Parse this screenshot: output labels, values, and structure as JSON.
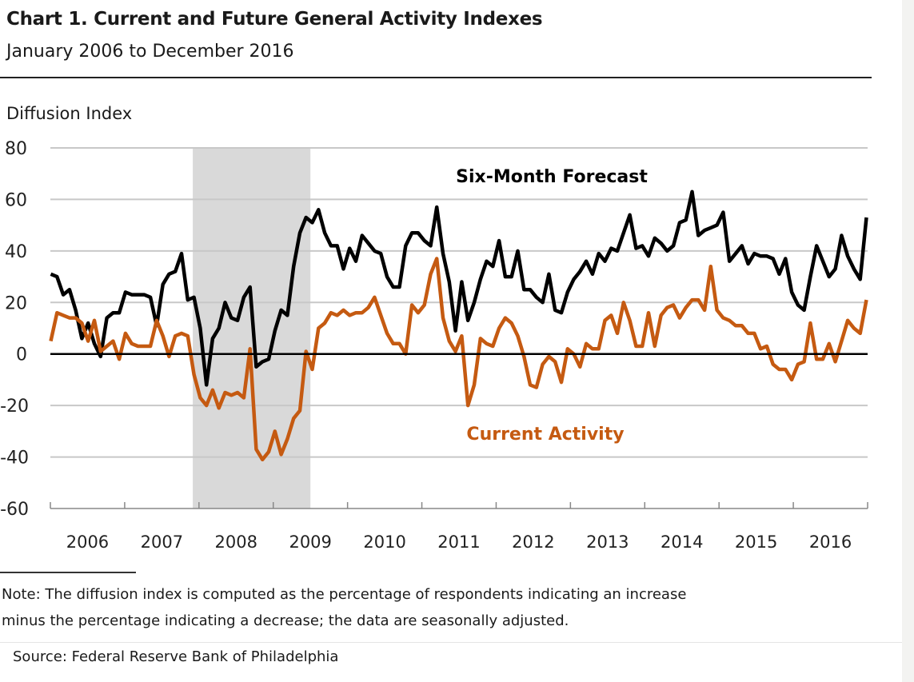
{
  "header": {
    "title": "Chart 1. Current and Future General Activity Indexes",
    "subtitle": "January 2006 to December 2016"
  },
  "footer": {
    "note_line1": "Note: The diffusion index is computed as the percentage of respondents indicating an increase",
    "note_line2": "minus the percentage indicating a decrease; the data are seasonally adjusted.",
    "source": "Source: Federal Reserve Bank of Philadelphia"
  },
  "chart_data": {
    "type": "line",
    "title": "Chart 1. Current and Future General Activity Indexes",
    "subtitle": "January 2006 to December 2016",
    "ylabel": "Diffusion Index",
    "xlabel": "",
    "x_start": "2006-01",
    "x_end": "2016-12",
    "x_frequency": "monthly",
    "ylim": [
      -60,
      80
    ],
    "yticks": [
      80,
      60,
      40,
      20,
      0,
      -20,
      -40,
      -60
    ],
    "xtick_labels": [
      "2006",
      "2007",
      "2008",
      "2009",
      "2010",
      "2011",
      "2012",
      "2013",
      "2014",
      "2015",
      "2016"
    ],
    "grid": true,
    "recession_shading": {
      "start": "2007-12",
      "end": "2009-06",
      "color": "#d9d9d9"
    },
    "series": [
      {
        "name": "Six-Month Forecast",
        "color": "#000000",
        "values": [
          31,
          30,
          23,
          25,
          17,
          6,
          12,
          4,
          -1,
          14,
          16,
          16,
          24,
          23,
          23,
          23,
          22,
          11,
          27,
          31,
          32,
          39,
          21,
          22,
          10,
          -12,
          6,
          10,
          20,
          14,
          13,
          22,
          26,
          -5,
          -3,
          -2,
          9,
          17,
          15,
          34,
          47,
          53,
          51,
          56,
          47,
          42,
          42,
          33,
          41,
          36,
          46,
          43,
          40,
          39,
          30,
          26,
          26,
          42,
          47,
          47,
          44,
          42,
          57,
          39,
          28,
          9,
          28,
          13,
          20,
          29,
          36,
          34,
          44,
          30,
          30,
          40,
          25,
          25,
          22,
          20,
          31,
          17,
          16,
          24,
          29,
          32,
          36,
          31,
          39,
          36,
          41,
          40,
          47,
          54,
          41,
          42,
          38,
          45,
          43,
          40,
          42,
          51,
          52,
          63,
          46,
          48,
          49,
          50,
          55,
          36,
          39,
          42,
          35,
          39,
          38,
          38,
          37,
          31,
          37,
          24,
          19,
          17,
          30,
          42,
          36,
          30,
          33,
          46,
          38,
          33,
          29,
          53
        ]
      },
      {
        "name": "Current Activity",
        "color": "#c55a11",
        "values": [
          5,
          16,
          15,
          14,
          14,
          12,
          5,
          13,
          1,
          3,
          5,
          -2,
          8,
          4,
          3,
          3,
          3,
          13,
          7,
          -1,
          7,
          8,
          7,
          -8,
          -17,
          -20,
          -14,
          -21,
          -15,
          -16,
          -15,
          -17,
          2,
          -37,
          -41,
          -38,
          -30,
          -39,
          -33,
          -25,
          -22,
          1,
          -6,
          10,
          12,
          16,
          15,
          17,
          15,
          16,
          16,
          18,
          22,
          15,
          8,
          4,
          4,
          0,
          19,
          16,
          19,
          31,
          37,
          14,
          5,
          1,
          7,
          -20,
          -12,
          6,
          4,
          3,
          10,
          14,
          12,
          7,
          -1,
          -12,
          -13,
          -4,
          -1,
          -3,
          -11,
          2,
          0,
          -5,
          4,
          2,
          2,
          13,
          15,
          8,
          20,
          13,
          3,
          3,
          16,
          3,
          15,
          18,
          19,
          14,
          18,
          21,
          21,
          17,
          34,
          17,
          14,
          13,
          11,
          11,
          8,
          8,
          2,
          3,
          -4,
          -6,
          -6,
          -10,
          -4,
          -3,
          12,
          -2,
          -2,
          4,
          -3,
          5,
          13,
          10,
          8,
          21
        ]
      }
    ],
    "annotations": [
      "Six-Month Forecast",
      "Current Activity"
    ]
  }
}
